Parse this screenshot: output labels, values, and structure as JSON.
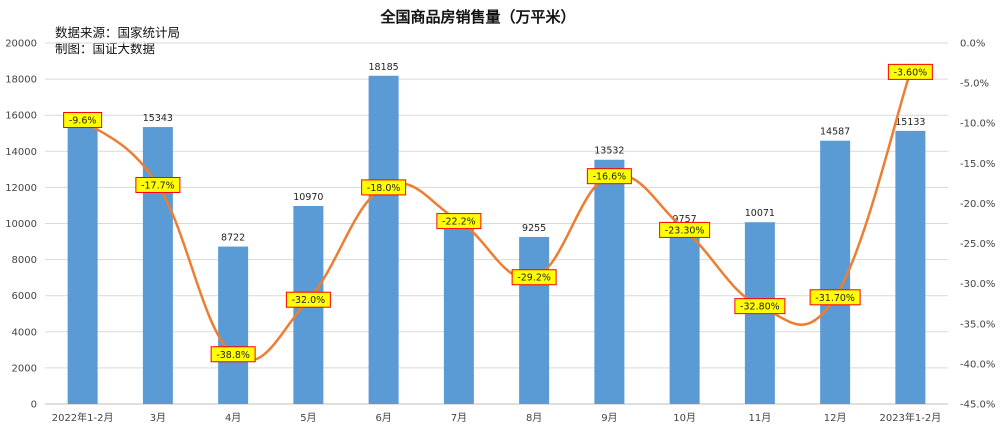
{
  "chart_data": {
    "type": "bar",
    "title": "全国商品房销售量（万平米）",
    "annotations": [
      "数据来源：国家统计局",
      "制图：国证大数据"
    ],
    "categories": [
      "2022年1-2月",
      "3月",
      "4月",
      "5月",
      "6月",
      "7月",
      "8月",
      "9月",
      "10月",
      "11月",
      "12月",
      "2023年1-2月"
    ],
    "bar_series": {
      "values": [
        15700,
        15343,
        8722,
        10970,
        18185,
        9712,
        9255,
        13532,
        9757,
        10071,
        14587,
        15133
      ],
      "value_labels": [
        "",
        "15343",
        "8722",
        "10970",
        "18185",
        "9712",
        "9255",
        "13532",
        "9757",
        "10071",
        "14587",
        "15133"
      ],
      "color": "#5b9bd5",
      "axis": "left"
    },
    "line_series": {
      "values": [
        -9.6,
        -17.7,
        -38.8,
        -32.0,
        -18.0,
        -22.2,
        -29.2,
        -16.6,
        -23.3,
        -32.8,
        -31.7,
        -3.6
      ],
      "value_labels": [
        "-9.6%",
        "-17.7%",
        "-38.8%",
        "-32.0%",
        "-18.0%",
        "-22.2%",
        "-29.2%",
        "-16.6%",
        "-23.30%",
        "-32.80%",
        "-31.70%",
        "-3.60%"
      ],
      "color": "#ed7d31",
      "label_background": "#ffff00",
      "label_border": "#ff0000",
      "axis": "right",
      "smooth": true
    },
    "y_left": {
      "ylim": [
        0,
        20000
      ],
      "ticks": [
        "0",
        "2000",
        "4000",
        "6000",
        "8000",
        "10000",
        "12000",
        "14000",
        "16000",
        "18000",
        "20000"
      ]
    },
    "y_right": {
      "ylim": [
        -45,
        0
      ],
      "ticks": [
        "0.0%",
        "-5.0%",
        "-10.0%",
        "-15.0%",
        "-20.0%",
        "-25.0%",
        "-30.0%",
        "-35.0%",
        "-40.0%",
        "-45.0%"
      ]
    },
    "grid": true,
    "legend": "none"
  }
}
